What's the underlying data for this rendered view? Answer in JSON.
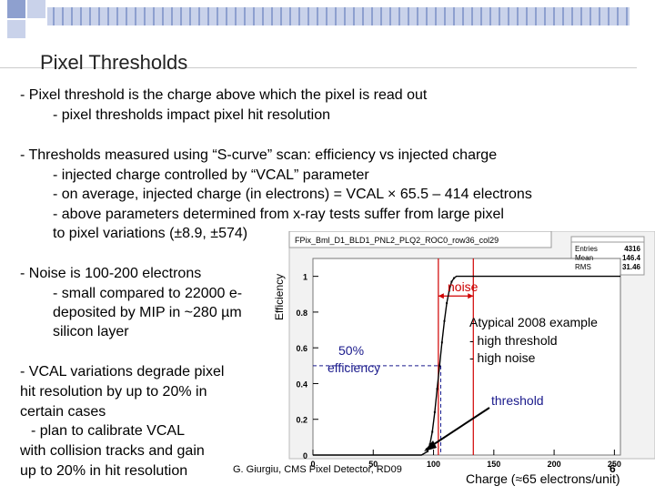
{
  "slide": {
    "title": "Pixel Thresholds",
    "lines": [
      "- Pixel threshold is the charge above which the pixel is read out",
      "- pixel thresholds impact pixel hit resolution",
      "- Thresholds measured using “S-curve” scan: efficiency vs injected charge",
      "- injected charge controlled by “VCAL” parameter",
      "- on average, injected charge (in electrons) = VCAL  × 65.5 – 414 electrons",
      "- above parameters determined from x-ray tests suffer from large pixel",
      "to pixel variations (±8.9, ±574)",
      "- Noise is 100-200 electrons",
      "- small compared to 22000 e-",
      "deposited by MIP in ~280 µm",
      "silicon layer",
      "- VCAL variations degrade pixel",
      "hit resolution by up to 20% in",
      "certain cases",
      "- plan to calibrate VCAL",
      "with collision tracks and gain",
      "up to 20% in hit resolution"
    ],
    "footer": "G. Giurgiu, CMS Pixel Detector, RD09",
    "page_number": "6",
    "accent_color": "#7b8fc2"
  },
  "annotations": {
    "noise": "noise",
    "fifty_pct": "50%",
    "efficiency": "efficiency",
    "example": "Atypical 2008 example",
    "high_threshold": "- high threshold",
    "high_noise": "- high noise",
    "threshold": "threshold"
  },
  "chart_data": {
    "type": "line",
    "title": "FPix_Bml_D1_BLD1_PNL2_PLQ2_ROC0_row36_col29",
    "ylabel": "Efficiency",
    "xlabel": "Charge (≈65 electrons/unit)",
    "xlim": [
      0,
      255
    ],
    "ylim": [
      0,
      1.1
    ],
    "xticks": [
      0,
      50,
      100,
      150,
      200,
      250
    ],
    "yticks": [
      0,
      0.2,
      0.4,
      0.6,
      0.8,
      1
    ],
    "stats": {
      "labels": [
        "Entries",
        "Mean",
        "RMS"
      ],
      "values": [
        "4316",
        "146.4",
        "31.46"
      ]
    },
    "series": [
      {
        "x": [
          0,
          90,
          95,
          97,
          99,
          101,
          103,
          105,
          107,
          109,
          111,
          113,
          115,
          117,
          119,
          121,
          255
        ],
        "y": [
          0,
          0,
          0.02,
          0.06,
          0.13,
          0.24,
          0.37,
          0.5,
          0.63,
          0.75,
          0.85,
          0.92,
          0.97,
          0.99,
          1.0,
          1.0,
          1.0
        ]
      }
    ],
    "threshold_x": 106,
    "noise_band": [
      104,
      133
    ],
    "half_efficiency": 0.5
  }
}
